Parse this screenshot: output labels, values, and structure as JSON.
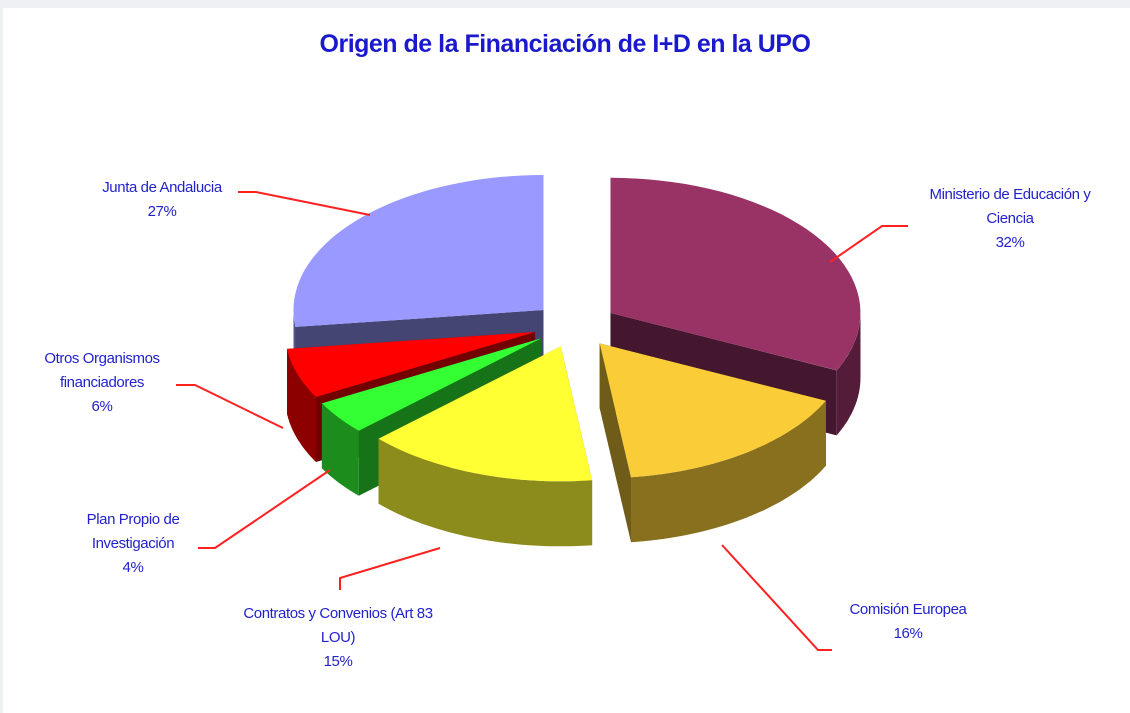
{
  "chart_data": {
    "type": "pie3d",
    "title": "Origen de la Financiación de I+D en la UPO",
    "categories": [
      "Ministerio de Educación y Ciencia",
      "Comisión Europea",
      "Contratos y Convenios (Art 83 LOU)",
      "Plan Propio de Investigación",
      "Otros Organismos financiadores",
      "Junta de Andalucia"
    ],
    "values": [
      32,
      16,
      15,
      4,
      6,
      27
    ],
    "value_labels": [
      "32%",
      "16%",
      "15%",
      "4%",
      "6%",
      "27%"
    ],
    "colors": [
      "#993366",
      "#f9cc38",
      "#ffff33",
      "#33ff33",
      "#ff0000",
      "#9999ff"
    ]
  }
}
